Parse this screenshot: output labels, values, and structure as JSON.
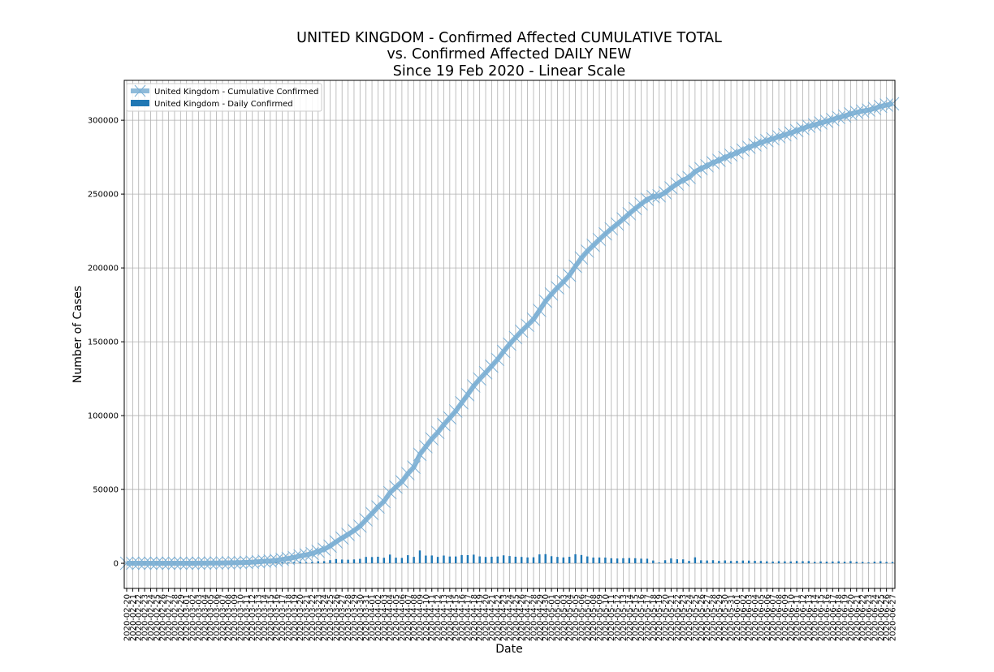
{
  "chart_data": {
    "type": "line",
    "title_lines": [
      "UNITED KINGDOM - Confirmed Affected CUMULATIVE TOTAL",
      "vs. Confirmed Affected DAILY NEW",
      "Since 19 Feb 2020 - Linear Scale"
    ],
    "xlabel": "Date",
    "ylabel": "Number of Cases",
    "yticks": [
      0,
      50000,
      100000,
      150000,
      200000,
      250000,
      300000
    ],
    "ylim": [
      -17000,
      327000
    ],
    "grid": true,
    "legend_position": "top-left",
    "x_start": "2020-02-20",
    "x_end": "2020-06-27",
    "series": [
      {
        "name": "United Kingdom - Cumulative Confirmed",
        "kind": "line",
        "color": "#7bafd4",
        "marker": "x",
        "values": [
          9,
          9,
          9,
          13,
          13,
          13,
          15,
          20,
          23,
          36,
          40,
          51,
          85,
          114,
          160,
          206,
          271,
          321,
          373,
          456,
          590,
          797,
          1061,
          1391,
          1543,
          1950,
          2626,
          3269,
          3983,
          5018,
          5683,
          6650,
          8077,
          9529,
          11658,
          14543,
          17089,
          19522,
          22141,
          25150,
          29474,
          33718,
          38168,
          41903,
          47806,
          51608,
          55242,
          60733,
          65077,
          73758,
          78991,
          84279,
          88621,
          93873,
          98476,
          103093,
          108692,
          114217,
          120067,
          124743,
          129044,
          133495,
          138078,
          143464,
          148377,
          152840,
          157149,
          161145,
          165221,
          171253,
          177454,
          182260,
          186599,
          190584,
          194990,
          201101,
          206715,
          211364,
          215260,
          219183,
          223060,
          226463,
          229705,
          233151,
          236711,
          240161,
          243303,
          246406,
          248293,
          248818,
          250908,
          254195,
          256911,
          259559,
          261184,
          265227,
          267240,
          269127,
          271222,
          272826,
          274762,
          276332,
          277985,
          279856,
          281661,
          283311,
          284868,
          286194,
          287399,
          288833,
          290143,
          291409,
          292950,
          294375,
          295889,
          296857,
          298136,
          299251,
          300469,
          301815,
          302879,
          304331,
          305289,
          306210,
          306862,
          307980,
          309360,
          310250,
          311151
        ]
      },
      {
        "name": "United Kingdom - Daily Confirmed",
        "kind": "bar",
        "color": "#1f77b4",
        "values": [
          0,
          0,
          0,
          4,
          0,
          0,
          2,
          5,
          3,
          13,
          4,
          11,
          34,
          29,
          46,
          46,
          65,
          50,
          52,
          83,
          134,
          207,
          264,
          330,
          152,
          407,
          676,
          643,
          714,
          1035,
          665,
          967,
          1427,
          1452,
          2129,
          2885,
          2546,
          2433,
          2619,
          3009,
          4324,
          4244,
          4450,
          3735,
          5903,
          3802,
          3634,
          5491,
          4344,
          8681,
          5233,
          5288,
          4342,
          5252,
          4603,
          4617,
          5599,
          5525,
          5850,
          4676,
          4301,
          4451,
          4583,
          5386,
          4913,
          4463,
          4309,
          3996,
          4076,
          6032,
          6201,
          4806,
          4339,
          3985,
          4406,
          6111,
          5614,
          4649,
          3896,
          3923,
          3877,
          3403,
          3242,
          3446,
          3560,
          3450,
          3142,
          3103,
          1887,
          525,
          2090,
          3287,
          2716,
          2648,
          1625,
          4043,
          2013,
          1887,
          2095,
          1604,
          1936,
          1570,
          1653,
          1871,
          1805,
          1650,
          1557,
          1326,
          1205,
          1434,
          1310,
          1266,
          1541,
          1425,
          1514,
          968,
          1279,
          1115,
          1218,
          1346,
          1064,
          1452,
          958,
          921,
          652,
          1118,
          1380,
          890,
          901
        ]
      }
    ]
  }
}
